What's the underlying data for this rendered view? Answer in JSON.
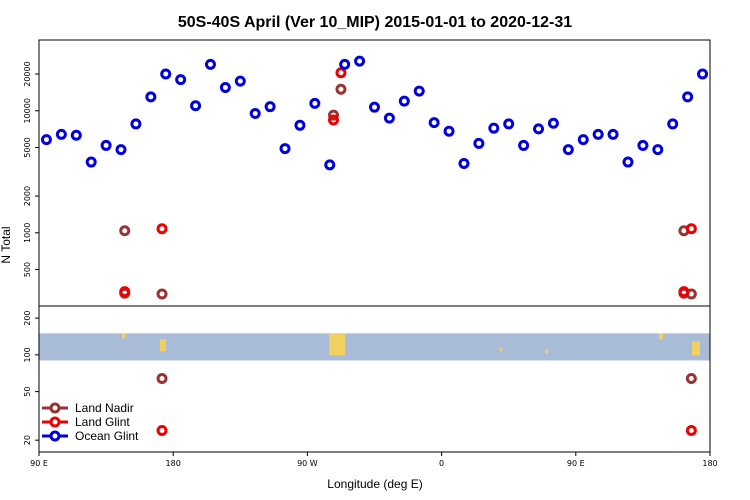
{
  "chart_data": {
    "type": "scatter",
    "title": "50S-40S April (Ver 10_MIP)   2015-01-01 to 2020-12-31",
    "xlabel": "Longitude (deg E)",
    "ylabel": "N Total",
    "x_ticks": [
      {
        "value": 90,
        "label": "90 E"
      },
      {
        "value": 180,
        "label": "180"
      },
      {
        "value": 270,
        "label": "90 W"
      },
      {
        "value": 360,
        "label": "0"
      },
      {
        "value": 450,
        "label": "90 E"
      },
      {
        "value": 540,
        "label": "180"
      }
    ],
    "xlim": [
      90,
      540
    ],
    "y_scale": "log",
    "y_ticks": [
      20,
      50,
      100,
      200,
      500,
      1000,
      2000,
      5000,
      10000,
      20000
    ],
    "ylim": [
      16,
      38000
    ],
    "legend": {
      "placement": "bottom-left",
      "entries": [
        {
          "name": "Land Nadir",
          "color": "#993333"
        },
        {
          "name": "Land Glint",
          "color": "#ee0000"
        },
        {
          "name": "Ocean Glint",
          "color": "#0000dd"
        }
      ]
    },
    "series": [
      {
        "name": "Land Nadir",
        "color": "#993333",
        "points": [
          [
            147.5,
            1040
          ],
          [
            147.5,
            320
          ],
          [
            172.5,
            64
          ],
          [
            172.5,
            315
          ],
          [
            287.5,
            9200
          ],
          [
            292.5,
            15000
          ],
          [
            522.5,
            1040
          ],
          [
            522.5,
            320
          ],
          [
            527.5,
            64
          ],
          [
            527.5,
            315
          ]
        ]
      },
      {
        "name": "Land Glint",
        "color": "#ee0000",
        "points": [
          [
            147.5,
            330
          ],
          [
            172.5,
            24
          ],
          [
            172.5,
            1080
          ],
          [
            287.5,
            8400
          ],
          [
            292.5,
            20500
          ],
          [
            522.5,
            330
          ],
          [
            527.5,
            24
          ],
          [
            527.5,
            1080
          ]
        ]
      },
      {
        "name": "Ocean Glint",
        "color": "#0000dd",
        "points": [
          [
            95,
            5800
          ],
          [
            105,
            6400
          ],
          [
            115,
            6300
          ],
          [
            125,
            3800
          ],
          [
            135,
            5200
          ],
          [
            145,
            4800
          ],
          [
            155,
            7800
          ],
          [
            165,
            13000
          ],
          [
            175,
            20000
          ],
          [
            185,
            18000
          ],
          [
            195,
            11000
          ],
          [
            205,
            24000
          ],
          [
            215,
            15500
          ],
          [
            225,
            17500
          ],
          [
            235,
            9500
          ],
          [
            245,
            10800
          ],
          [
            255,
            4900
          ],
          [
            265,
            7600
          ],
          [
            275,
            11500
          ],
          [
            285,
            3600
          ],
          [
            295,
            24000
          ],
          [
            305,
            25500
          ],
          [
            315,
            10700
          ],
          [
            325,
            8700
          ],
          [
            335,
            12000
          ],
          [
            345,
            14500
          ],
          [
            355,
            8000
          ],
          [
            365,
            6800
          ],
          [
            375,
            3700
          ],
          [
            385,
            5400
          ],
          [
            395,
            7200
          ],
          [
            405,
            7800
          ],
          [
            415,
            5200
          ],
          [
            425,
            7100
          ],
          [
            435,
            7900
          ],
          [
            445,
            4800
          ],
          [
            455,
            5800
          ],
          [
            465,
            6400
          ],
          [
            475,
            6400
          ],
          [
            485,
            3800
          ],
          [
            495,
            5200
          ],
          [
            505,
            4800
          ],
          [
            515,
            7800
          ],
          [
            525,
            13000
          ],
          [
            535,
            20000
          ]
        ]
      }
    ],
    "background_band": {
      "ymin": 90,
      "ymax": 150,
      "ocean_color": "#a8bcd8",
      "land_color": "#f0d060"
    }
  }
}
